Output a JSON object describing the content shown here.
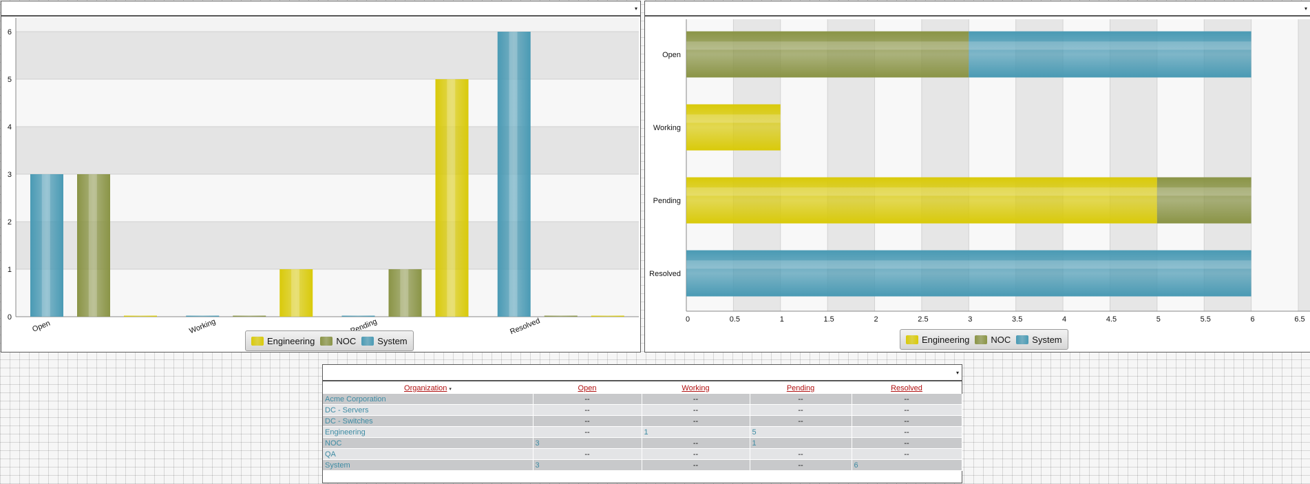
{
  "panels": {
    "left_header": {
      "caret": "▾"
    },
    "right_header": {
      "caret": "▾"
    },
    "grid_header": {
      "caret": "▾"
    }
  },
  "colors": {
    "Engineering": "#d9ca0a",
    "NOC": "#8a9446",
    "System": "#4a9ab4"
  },
  "legend": [
    "Engineering",
    "NOC",
    "System"
  ],
  "chart_data": [
    {
      "type": "bar",
      "orientation": "vertical",
      "categories": [
        "Open",
        "Working",
        "Pending",
        "Resolved"
      ],
      "series": [
        {
          "name": "System",
          "values": [
            3,
            0,
            0,
            6
          ]
        },
        {
          "name": "NOC",
          "values": [
            3,
            0,
            1,
            0
          ]
        },
        {
          "name": "Engineering",
          "values": [
            0,
            1,
            5,
            0
          ]
        }
      ],
      "ylim": [
        0,
        6
      ],
      "y_ticks": [
        "0",
        "1",
        "2",
        "3",
        "4",
        "5",
        "6"
      ],
      "legend_position": "bottom"
    },
    {
      "type": "bar",
      "orientation": "horizontal",
      "stacked": true,
      "categories": [
        "Open",
        "Working",
        "Pending",
        "Resolved"
      ],
      "series": [
        {
          "name": "Engineering",
          "values": [
            0,
            1,
            5,
            0
          ]
        },
        {
          "name": "NOC",
          "values": [
            3,
            0,
            1,
            0
          ]
        },
        {
          "name": "System",
          "values": [
            3,
            0,
            0,
            6
          ]
        }
      ],
      "xlim": [
        0,
        6.5
      ],
      "x_ticks": [
        "0",
        "0.5",
        "1",
        "1.5",
        "2",
        "2.5",
        "3",
        "3.5",
        "4",
        "4.5",
        "5",
        "5.5",
        "6",
        "6.5"
      ],
      "legend_position": "bottom"
    }
  ],
  "table": {
    "columns": [
      "Organization",
      "Open",
      "Working",
      "Pending",
      "Resolved"
    ],
    "sort_indicator": "▾",
    "rows": [
      {
        "org": "Acme Corporation",
        "open": "--",
        "working": "--",
        "pending": "--",
        "resolved": "--"
      },
      {
        "org": "DC - Servers",
        "open": "--",
        "working": "--",
        "pending": "--",
        "resolved": "--"
      },
      {
        "org": "DC - Switches",
        "open": "--",
        "working": "--",
        "pending": "--",
        "resolved": "--"
      },
      {
        "org": "Engineering",
        "open": "--",
        "working": "1",
        "pending": "5",
        "resolved": "--"
      },
      {
        "org": "NOC",
        "open": "3",
        "working": "--",
        "pending": "1",
        "resolved": "--"
      },
      {
        "org": "QA",
        "open": "--",
        "working": "--",
        "pending": "--",
        "resolved": "--"
      },
      {
        "org": "System",
        "open": "3",
        "working": "--",
        "pending": "--",
        "resolved": "6"
      }
    ]
  }
}
